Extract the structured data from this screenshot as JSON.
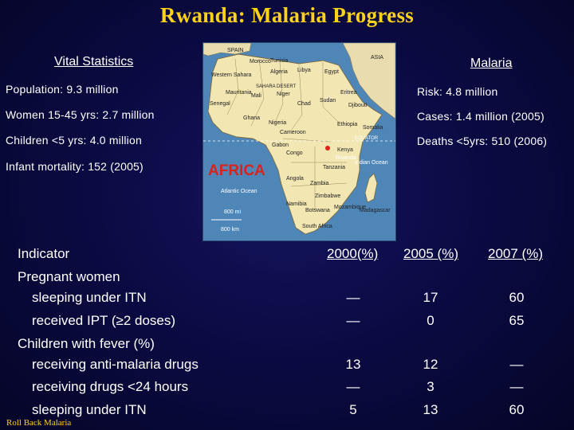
{
  "title": "Rwanda: Malaria Progress",
  "vital": {
    "header": "Vital Statistics",
    "items": [
      "Population: 9.3 million",
      "Women 15-45 yrs: 2.7 million",
      "Children <5 yrs: 4.0 million",
      "Infant mortality: 152 (2005)"
    ]
  },
  "malaria": {
    "header": "Malaria",
    "items": [
      "Risk: 4.8 million",
      "Cases: 1.4 million (2005)",
      "Deaths <5yrs: 510 (2006)"
    ]
  },
  "map": {
    "title": "AFRICA",
    "labels": {
      "spain": "SPAIN",
      "asia": "ASIA",
      "morocco": "Morocco",
      "tunisia": "Tunisia",
      "libya": "Libya",
      "egypt": "Egypt",
      "algeria": "Algeria",
      "western_sahara": "Western Sahara",
      "sahara": "SAHARA DESERT",
      "mauritania": "Mauritania",
      "mali": "Mali",
      "niger": "Niger",
      "chad": "Chad",
      "sudan": "Sudan",
      "eritrea": "Eritrea",
      "djibouti": "Djibouti",
      "ethiopia": "Ethiopia",
      "somalia": "Somalia",
      "kenya": "Kenya",
      "rwanda": "Rwanda",
      "indian_ocean": "Indian Ocean",
      "atlantic_ocean": "Atlantic Ocean",
      "equator": "EQUATOR",
      "nigeria": "Nigeria",
      "cameroon": "Cameroon",
      "gabon": "Gabon",
      "congo": "Congo",
      "angola": "Angola",
      "namibia": "Namibia",
      "botswana": "Botswana",
      "south_africa": "South Africa",
      "zambia": "Zambia",
      "zimbabwe": "Zimbabwe",
      "mozambique": "Mozambique",
      "madagascar": "Madagascar",
      "tanzania": "Tanzania",
      "ghana": "Ghana",
      "senegal": "Senegal",
      "scale_mi": "800 mi",
      "scale_km": "800 km"
    }
  },
  "table": {
    "headers": [
      "Indicator",
      "2000(%)",
      "2005 (%)",
      "2007 (%)"
    ],
    "groups": [
      {
        "label": "Pregnant women"
      },
      {
        "label": "Children with fever (%)"
      }
    ],
    "rows": [
      {
        "label": "sleeping under ITN",
        "v2000": "—",
        "v2005": "17",
        "v2007": "60"
      },
      {
        "label": "received IPT (≥2 doses)",
        "v2000": "—",
        "v2005": "0",
        "v2007": "65"
      },
      {
        "label": "receiving anti-malaria drugs",
        "v2000": "13",
        "v2005": "12",
        "v2007": "—"
      },
      {
        "label": "receiving drugs <24 hours",
        "v2000": "—",
        "v2005": "3",
        "v2007": "—"
      },
      {
        "label": "sleeping under ITN",
        "v2000": "5",
        "v2005": "13",
        "v2007": "60"
      }
    ]
  },
  "footer": "Roll Back Malaria"
}
